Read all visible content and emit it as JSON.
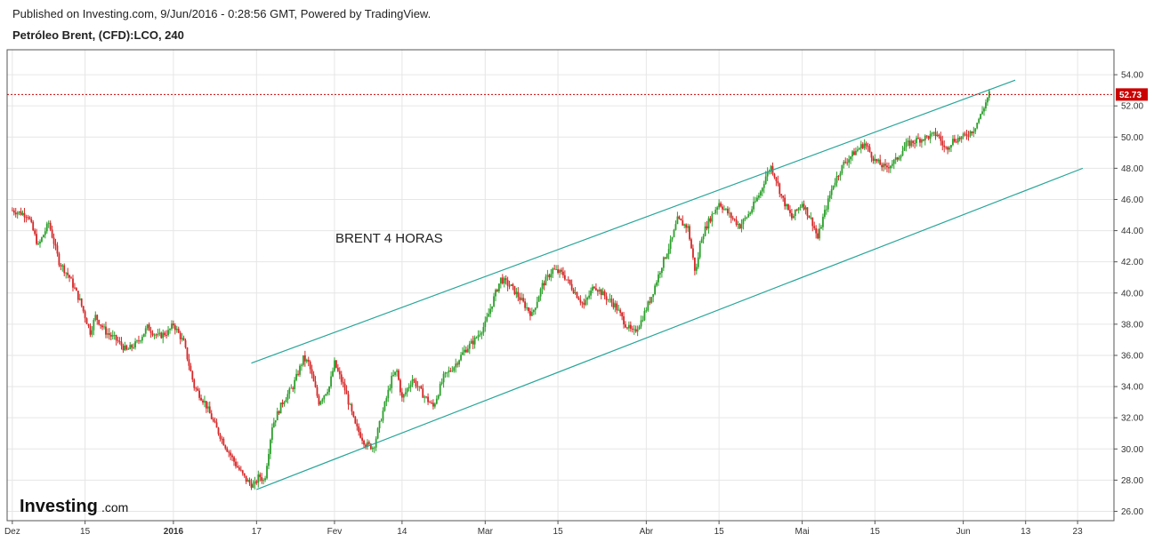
{
  "header": {
    "published": "Published on Investing.com, 9/Jun/2016 - 0:28:56 GMT, Powered by TradingView.",
    "symbol": "Petróleo Brent, (CFD):LCO, 240"
  },
  "logo": {
    "main": "Investing",
    "suffix": ".com"
  },
  "colors": {
    "up": "#2ca02c",
    "down": "#d62728",
    "channel": "#26a69a",
    "price_line": "#cc0000",
    "grid": "#e6e6e6",
    "axis": "#555555"
  },
  "chart_data": {
    "type": "candlestick",
    "title": "Petróleo Brent, (CFD):LCO, 240",
    "annotation": "BRENT 4 HORAS",
    "ylim": [
      25.4,
      55.6
    ],
    "y_ticks": [
      "26.00",
      "28.00",
      "30.00",
      "32.00",
      "34.00",
      "36.00",
      "38.00",
      "40.00",
      "42.00",
      "44.00",
      "46.00",
      "48.00",
      "50.00",
      "52.00",
      "54.00"
    ],
    "y_tick_values": [
      26,
      28,
      30,
      32,
      34,
      36,
      38,
      40,
      42,
      44,
      46,
      48,
      50,
      52,
      54
    ],
    "x_range_days": [
      -1,
      212
    ],
    "x_ticks": [
      {
        "label": "Dez",
        "day": 0,
        "bold": false
      },
      {
        "label": "15",
        "day": 14,
        "bold": false
      },
      {
        "label": "2016",
        "day": 31,
        "bold": true
      },
      {
        "label": "17",
        "day": 47,
        "bold": false
      },
      {
        "label": "Fev",
        "day": 62,
        "bold": false
      },
      {
        "label": "14",
        "day": 75,
        "bold": false
      },
      {
        "label": "Mar",
        "day": 91,
        "bold": false
      },
      {
        "label": "15",
        "day": 105,
        "bold": false
      },
      {
        "label": "Abr",
        "day": 122,
        "bold": false
      },
      {
        "label": "15",
        "day": 136,
        "bold": false
      },
      {
        "label": "Mai",
        "day": 152,
        "bold": false
      },
      {
        "label": "15",
        "day": 166,
        "bold": false
      },
      {
        "label": "Jun",
        "day": 183,
        "bold": false
      },
      {
        "label": "13",
        "day": 195,
        "bold": false
      },
      {
        "label": "23",
        "day": 205,
        "bold": false
      }
    ],
    "last_price": 52.73,
    "last_price_label": "52.73",
    "anchors": [
      [
        0,
        45.3
      ],
      [
        3,
        45.0
      ],
      [
        5,
        43.0
      ],
      [
        7,
        44.5
      ],
      [
        9,
        42.0
      ],
      [
        11,
        41.0
      ],
      [
        13,
        39.5
      ],
      [
        15,
        37.5
      ],
      [
        16,
        38.5
      ],
      [
        18,
        37.5
      ],
      [
        20,
        37.0
      ],
      [
        22,
        36.3
      ],
      [
        24,
        36.8
      ],
      [
        26,
        37.8
      ],
      [
        28,
        37.2
      ],
      [
        30,
        37.5
      ],
      [
        31,
        38.0
      ],
      [
        33,
        36.8
      ],
      [
        35,
        34.0
      ],
      [
        37,
        33.0
      ],
      [
        39,
        31.5
      ],
      [
        41,
        30.2
      ],
      [
        43,
        29.0
      ],
      [
        45,
        28.0
      ],
      [
        46.5,
        27.6
      ],
      [
        47.5,
        28.3
      ],
      [
        48.5,
        27.9
      ],
      [
        50,
        31.5
      ],
      [
        52,
        33.0
      ],
      [
        54,
        34.0
      ],
      [
        56,
        35.8
      ],
      [
        57,
        35.5
      ],
      [
        59,
        33.0
      ],
      [
        61,
        34.0
      ],
      [
        62,
        35.5
      ],
      [
        64,
        33.8
      ],
      [
        66,
        31.5
      ],
      [
        68,
        30.3
      ],
      [
        69.5,
        30.1
      ],
      [
        71,
        32.0
      ],
      [
        73,
        34.5
      ],
      [
        74,
        35.0
      ],
      [
        75,
        33.2
      ],
      [
        77,
        34.5
      ],
      [
        79,
        33.5
      ],
      [
        81,
        32.7
      ],
      [
        83,
        34.6
      ],
      [
        85,
        35.3
      ],
      [
        87,
        36.3
      ],
      [
        89,
        37.0
      ],
      [
        91,
        38.0
      ],
      [
        93,
        40.0
      ],
      [
        94,
        40.9
      ],
      [
        96,
        40.4
      ],
      [
        98,
        39.5
      ],
      [
        100,
        38.6
      ],
      [
        102,
        40.5
      ],
      [
        104,
        41.5
      ],
      [
        106,
        41.2
      ],
      [
        108,
        40.2
      ],
      [
        110,
        39.2
      ],
      [
        112,
        40.5
      ],
      [
        114,
        39.8
      ],
      [
        116,
        39.2
      ],
      [
        118,
        38.0
      ],
      [
        119.5,
        37.4
      ],
      [
        121,
        38.2
      ],
      [
        123,
        39.8
      ],
      [
        125,
        41.8
      ],
      [
        127,
        43.5
      ],
      [
        128,
        44.7
      ],
      [
        130,
        44.2
      ],
      [
        131.5,
        41.2
      ],
      [
        132.5,
        43.5
      ],
      [
        134,
        44.6
      ],
      [
        136,
        45.8
      ],
      [
        138,
        45.0
      ],
      [
        140,
        44.3
      ],
      [
        142,
        45.2
      ],
      [
        144,
        46.5
      ],
      [
        145,
        47.5
      ],
      [
        146,
        48.1
      ],
      [
        147,
        47.3
      ],
      [
        148,
        46.2
      ],
      [
        150,
        44.8
      ],
      [
        152,
        45.8
      ],
      [
        154,
        44.5
      ],
      [
        155,
        43.5
      ],
      [
        156,
        44.8
      ],
      [
        158,
        47.0
      ],
      [
        160,
        48.3
      ],
      [
        162,
        49.0
      ],
      [
        164,
        49.6
      ],
      [
        166,
        48.5
      ],
      [
        168,
        48.0
      ],
      [
        170,
        48.5
      ],
      [
        172,
        49.5
      ],
      [
        174,
        49.8
      ],
      [
        176,
        50.0
      ],
      [
        178,
        50.2
      ],
      [
        179.5,
        49.2
      ],
      [
        181,
        49.8
      ],
      [
        183,
        50.0
      ],
      [
        185,
        50.5
      ],
      [
        186.5,
        51.5
      ],
      [
        188,
        52.8
      ]
    ],
    "channel": {
      "upper": [
        [
          46,
          35.5
        ],
        [
          193,
          53.65
        ]
      ],
      "lower": [
        [
          47,
          27.4
        ],
        [
          206,
          48.0
        ]
      ]
    }
  }
}
